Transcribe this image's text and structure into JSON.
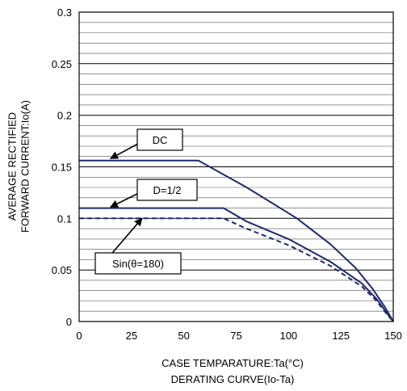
{
  "chart_data": {
    "type": "line",
    "title": "",
    "caption": "DERATING CURVE(Io-Ta)",
    "xlabel": "CASE TEMPARATURE:Ta(°C)",
    "ylabel_lines": [
      "AVERAGE RECTIFIED",
      "FORWARD CURRENT:Io(A)"
    ],
    "xlim": [
      0,
      150
    ],
    "ylim": [
      0,
      0.3
    ],
    "x_ticks": [
      0,
      25,
      50,
      75,
      100,
      125,
      150
    ],
    "x_tick_labels": [
      "0",
      "25",
      "50",
      "75",
      "100",
      "125",
      "150"
    ],
    "y_ticks": [
      0,
      0.05,
      0.1,
      0.15,
      0.2,
      0.25,
      0.3
    ],
    "y_tick_labels": [
      "0",
      "0.05",
      "0.1",
      "0.15",
      "0.2",
      "0.25",
      "0.3"
    ],
    "grid": {
      "y_minor_step": 0.01,
      "x_grid": false
    },
    "series": [
      {
        "name": "DC",
        "style": "solid",
        "color": "#1f2a6b",
        "x": [
          0,
          57,
          80,
          104,
          120,
          132,
          140,
          146,
          150
        ],
        "y": [
          0.156,
          0.156,
          0.13,
          0.1,
          0.075,
          0.052,
          0.032,
          0.014,
          0
        ]
      },
      {
        "name": "D=1/2",
        "style": "solid",
        "color": "#1f2a6b",
        "x": [
          0,
          69,
          80,
          100,
          120,
          135,
          142,
          147,
          150
        ],
        "y": [
          0.11,
          0.11,
          0.097,
          0.08,
          0.058,
          0.037,
          0.022,
          0.008,
          0
        ]
      },
      {
        "name": "Sin(θ=180)",
        "style": "dashed",
        "color": "#1f2a6b",
        "x": [
          0,
          69,
          80,
          100,
          120,
          135,
          142,
          147,
          150
        ],
        "y": [
          0.1,
          0.1,
          0.09,
          0.074,
          0.054,
          0.034,
          0.02,
          0.007,
          0
        ]
      }
    ],
    "annotations": [
      {
        "label": "DC",
        "arrow_to": [
          15,
          0.158
        ]
      },
      {
        "label": "D=1/2",
        "arrow_to": [
          15,
          0.111
        ]
      },
      {
        "label": "Sin(θ=180)",
        "arrow_to": [
          30,
          0.1
        ]
      }
    ]
  }
}
